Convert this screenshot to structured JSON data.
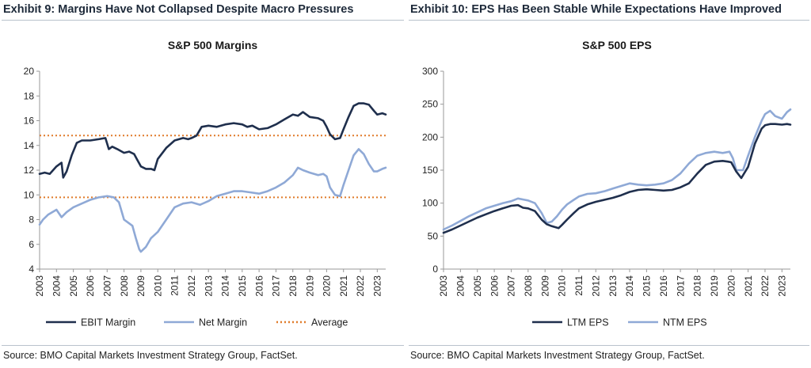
{
  "exhibit_left": "Exhibit 9: Margins Have Not Collapsed Despite Macro Pressures",
  "exhibit_right": "Exhibit 10: EPS Has Been Stable While Expectations Have Improved",
  "source_left": "Source: BMO Capital Markets Investment Strategy Group, FactSet.",
  "source_right": "Source: BMO Capital Markets Investment Strategy Group, FactSet.",
  "colors": {
    "dark_navy": "#1f2f4d",
    "light_blue": "#8fa9d6",
    "orange_dotted": "#e07b2a",
    "axis": "#9a9a9a"
  },
  "chart_data": [
    {
      "type": "line",
      "title": "S&P 500 Margins",
      "xlabel": "",
      "ylabel": "",
      "xlim": [
        2003,
        2023.5
      ],
      "ylim": [
        4,
        20
      ],
      "yticks": [
        4,
        6,
        8,
        10,
        12,
        14,
        16,
        18,
        20
      ],
      "xticks": [
        "2003",
        "2004",
        "2005",
        "2006",
        "2007",
        "2008",
        "2009",
        "2010",
        "2011",
        "2012",
        "2013",
        "2014",
        "2015",
        "2016",
        "2017",
        "2018",
        "2019",
        "2020",
        "2021",
        "2022",
        "2023"
      ],
      "legend_position": "bottom",
      "series": [
        {
          "name": "EBIT Margin",
          "style": "solid",
          "color": "#1f2f4d",
          "x": [
            2003.0,
            2003.3,
            2003.6,
            2004.0,
            2004.3,
            2004.4,
            2004.6,
            2004.9,
            2005.2,
            2005.5,
            2006.0,
            2006.5,
            2006.9,
            2007.1,
            2007.3,
            2007.6,
            2008.0,
            2008.3,
            2008.6,
            2008.8,
            2009.0,
            2009.3,
            2009.6,
            2009.8,
            2010.0,
            2010.5,
            2011.0,
            2011.5,
            2011.8,
            2012.0,
            2012.3,
            2012.6,
            2013.0,
            2013.5,
            2014.0,
            2014.5,
            2015.0,
            2015.3,
            2015.6,
            2016.0,
            2016.5,
            2017.0,
            2017.5,
            2018.0,
            2018.3,
            2018.6,
            2019.0,
            2019.5,
            2019.8,
            2020.0,
            2020.2,
            2020.5,
            2020.8,
            2021.0,
            2021.3,
            2021.6,
            2021.9,
            2022.2,
            2022.5,
            2022.8,
            2023.0,
            2023.3,
            2023.5
          ],
          "y": [
            11.7,
            11.8,
            11.7,
            12.3,
            12.6,
            11.4,
            11.9,
            13.2,
            14.2,
            14.4,
            14.4,
            14.5,
            14.6,
            13.7,
            13.9,
            13.7,
            13.4,
            13.5,
            13.3,
            12.8,
            12.3,
            12.1,
            12.1,
            12.0,
            12.9,
            13.8,
            14.4,
            14.6,
            14.5,
            14.6,
            14.8,
            15.5,
            15.6,
            15.5,
            15.7,
            15.8,
            15.7,
            15.5,
            15.6,
            15.3,
            15.4,
            15.7,
            16.1,
            16.5,
            16.4,
            16.7,
            16.3,
            16.2,
            16.0,
            15.5,
            14.9,
            14.5,
            14.6,
            15.3,
            16.3,
            17.2,
            17.4,
            17.4,
            17.3,
            16.8,
            16.5,
            16.6,
            16.5
          ]
        },
        {
          "name": "Net Margin",
          "style": "solid",
          "color": "#8fa9d6",
          "x": [
            2003.0,
            2003.2,
            2003.5,
            2004.0,
            2004.3,
            2004.6,
            2005.0,
            2005.5,
            2006.0,
            2006.5,
            2007.0,
            2007.4,
            2007.7,
            2008.0,
            2008.2,
            2008.5,
            2008.7,
            2008.9,
            2009.0,
            2009.3,
            2009.6,
            2010.0,
            2010.5,
            2011.0,
            2011.5,
            2012.0,
            2012.5,
            2013.0,
            2013.5,
            2014.0,
            2014.5,
            2015.0,
            2015.5,
            2016.0,
            2016.5,
            2017.0,
            2017.5,
            2018.0,
            2018.3,
            2018.6,
            2019.0,
            2019.5,
            2019.8,
            2020.0,
            2020.2,
            2020.5,
            2020.8,
            2021.0,
            2021.3,
            2021.6,
            2021.9,
            2022.2,
            2022.5,
            2022.8,
            2023.0,
            2023.3,
            2023.5
          ],
          "y": [
            7.6,
            8.0,
            8.4,
            8.8,
            8.2,
            8.6,
            9.0,
            9.3,
            9.6,
            9.8,
            9.9,
            9.8,
            9.4,
            8.0,
            7.8,
            7.5,
            6.5,
            5.6,
            5.4,
            5.8,
            6.5,
            7.0,
            8.0,
            9.0,
            9.3,
            9.4,
            9.2,
            9.5,
            9.9,
            10.1,
            10.3,
            10.3,
            10.2,
            10.1,
            10.3,
            10.6,
            11.0,
            11.6,
            12.2,
            12.0,
            11.8,
            11.6,
            11.7,
            11.5,
            10.6,
            10.0,
            9.9,
            10.8,
            12.0,
            13.2,
            13.7,
            13.3,
            12.5,
            11.9,
            11.9,
            12.1,
            12.2
          ]
        },
        {
          "name": "Average",
          "style": "dotted",
          "color": "#e07b2a",
          "x": [
            2003,
            2023.5
          ],
          "y": [
            14.8,
            14.8
          ],
          "x2": [
            2003,
            2023.5
          ],
          "y2": [
            9.8,
            9.8
          ]
        }
      ]
    },
    {
      "type": "line",
      "title": "S&P 500 EPS",
      "xlabel": "",
      "ylabel": "",
      "xlim": [
        2003,
        2023.5
      ],
      "ylim": [
        0,
        300
      ],
      "yticks": [
        0,
        50,
        100,
        150,
        200,
        250,
        300
      ],
      "xticks": [
        "2003",
        "2004",
        "2005",
        "2006",
        "2007",
        "2008",
        "2009",
        "2010",
        "2011",
        "2012",
        "2013",
        "2014",
        "2015",
        "2016",
        "2017",
        "2018",
        "2019",
        "2020",
        "2021",
        "2022",
        "2023"
      ],
      "legend_position": "bottom",
      "series": [
        {
          "name": "LTM EPS",
          "style": "solid",
          "color": "#1f2f4d",
          "x": [
            2003.0,
            2003.5,
            2004.0,
            2004.5,
            2005.0,
            2005.5,
            2006.0,
            2006.5,
            2007.0,
            2007.4,
            2007.7,
            2008.0,
            2008.4,
            2008.8,
            2009.1,
            2009.4,
            2009.8,
            2010.0,
            2010.3,
            2010.7,
            2011.0,
            2011.5,
            2012.0,
            2012.5,
            2013.0,
            2013.5,
            2014.0,
            2014.5,
            2015.0,
            2015.5,
            2016.0,
            2016.5,
            2017.0,
            2017.5,
            2018.0,
            2018.5,
            2019.0,
            2019.5,
            2019.8,
            2020.0,
            2020.3,
            2020.6,
            2021.0,
            2021.4,
            2021.8,
            2022.0,
            2022.3,
            2022.6,
            2023.0,
            2023.3,
            2023.5
          ],
          "y": [
            55,
            60,
            66,
            72,
            78,
            83,
            88,
            92,
            96,
            97,
            93,
            92,
            88,
            75,
            68,
            65,
            62,
            67,
            75,
            85,
            92,
            98,
            102,
            105,
            108,
            112,
            117,
            120,
            121,
            120,
            119,
            120,
            124,
            130,
            145,
            158,
            163,
            164,
            163,
            162,
            148,
            138,
            155,
            190,
            213,
            218,
            220,
            220,
            219,
            220,
            219
          ]
        },
        {
          "name": "NTM EPS",
          "style": "solid",
          "color": "#8fa9d6",
          "x": [
            2003.0,
            2003.5,
            2004.0,
            2004.5,
            2005.0,
            2005.5,
            2006.0,
            2006.5,
            2007.0,
            2007.4,
            2007.8,
            2008.0,
            2008.4,
            2008.8,
            2009.1,
            2009.4,
            2009.7,
            2010.0,
            2010.3,
            2010.7,
            2011.0,
            2011.5,
            2012.0,
            2012.5,
            2013.0,
            2013.5,
            2014.0,
            2014.5,
            2015.0,
            2015.5,
            2016.0,
            2016.5,
            2017.0,
            2017.5,
            2018.0,
            2018.5,
            2019.0,
            2019.5,
            2019.9,
            2020.1,
            2020.3,
            2020.7,
            2021.0,
            2021.4,
            2021.8,
            2022.0,
            2022.3,
            2022.6,
            2023.0,
            2023.3,
            2023.5
          ],
          "y": [
            60,
            66,
            73,
            80,
            86,
            92,
            96,
            100,
            103,
            107,
            105,
            104,
            100,
            85,
            70,
            72,
            80,
            90,
            98,
            105,
            110,
            114,
            115,
            118,
            122,
            126,
            130,
            128,
            127,
            128,
            130,
            135,
            145,
            160,
            172,
            176,
            178,
            176,
            178,
            168,
            150,
            150,
            172,
            200,
            225,
            235,
            240,
            232,
            228,
            238,
            242
          ]
        }
      ]
    }
  ]
}
